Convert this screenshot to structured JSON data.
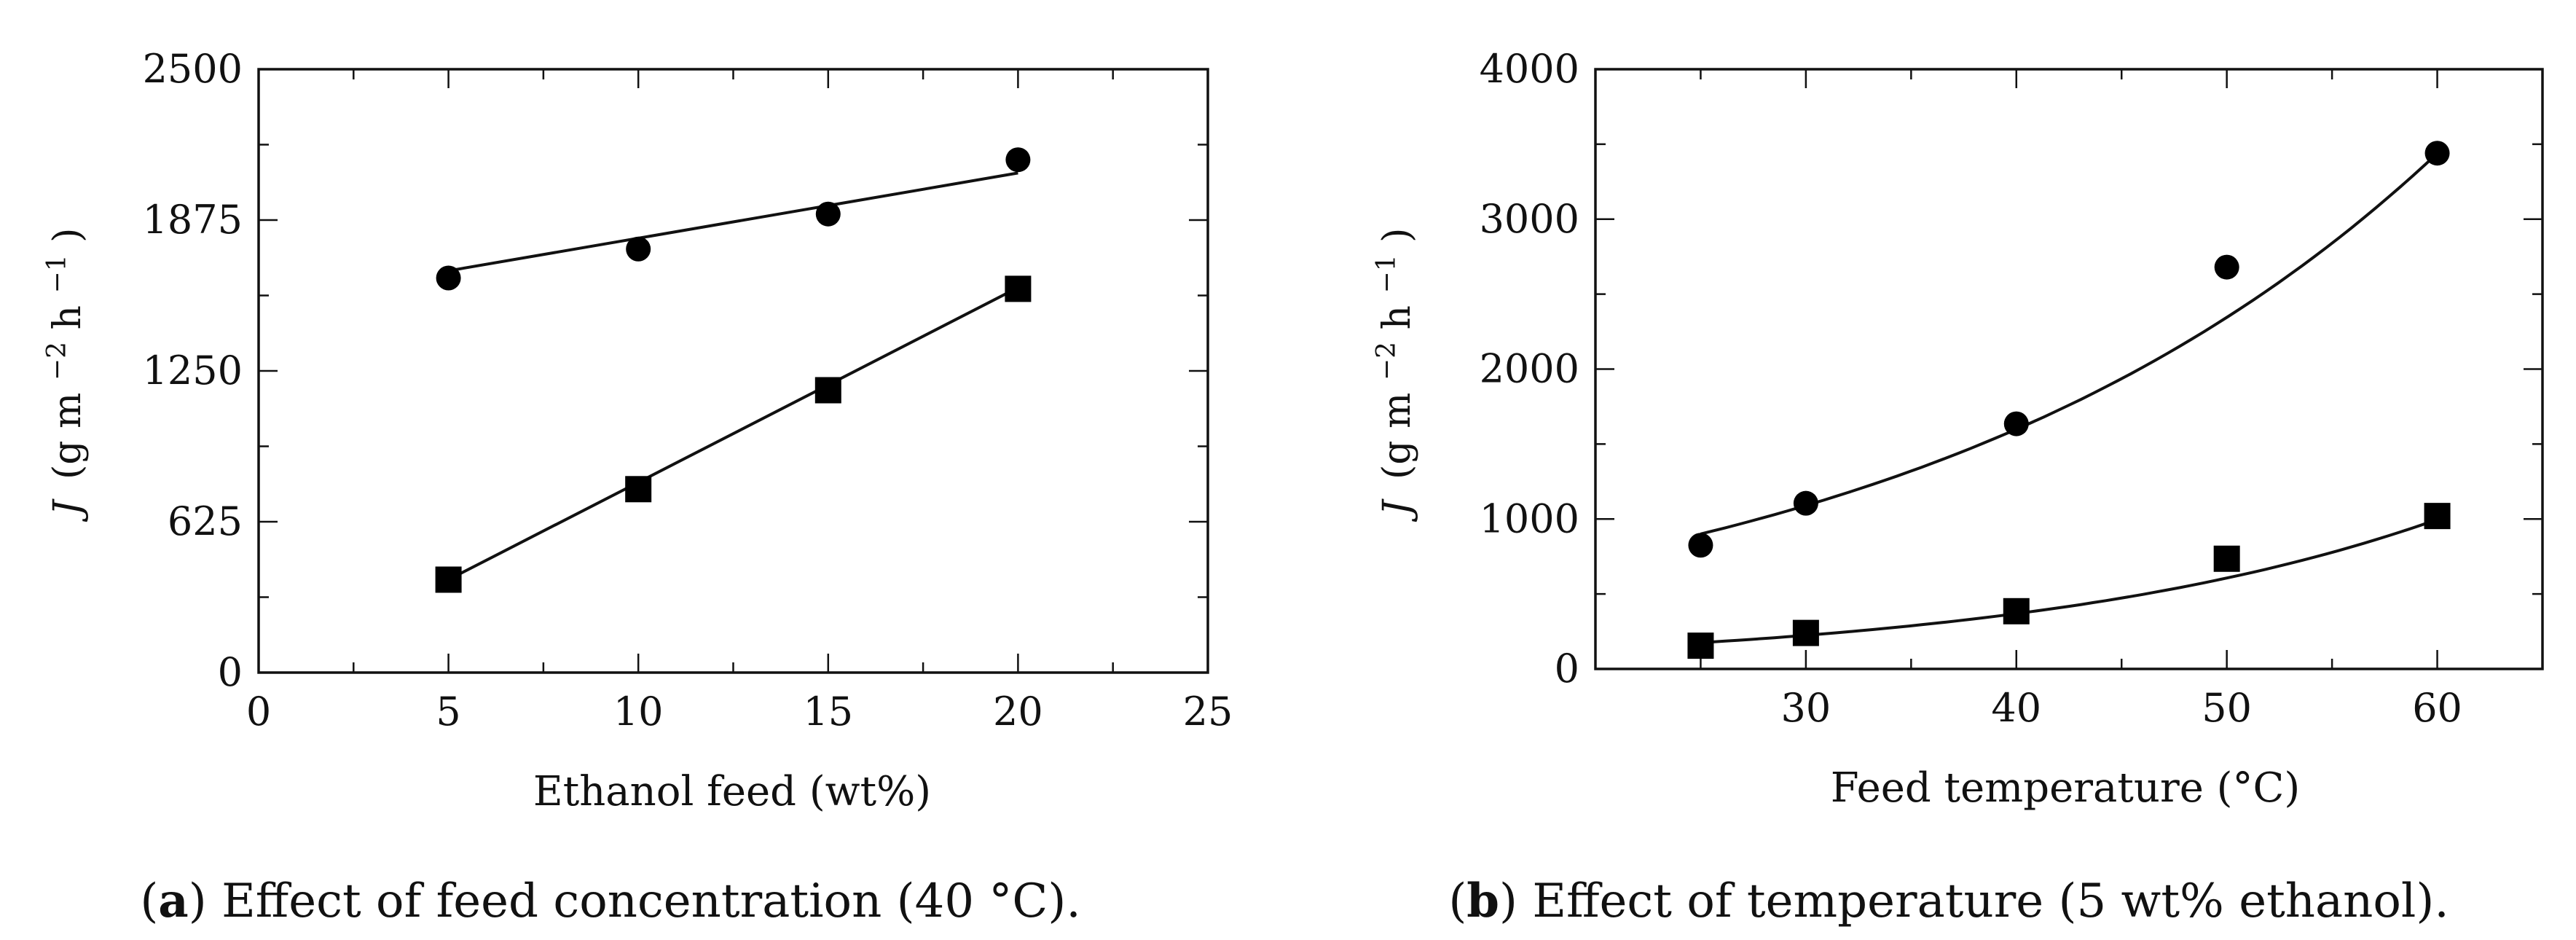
{
  "chart_data": [
    {
      "type": "scatter",
      "title": "",
      "caption_label": "a",
      "caption_text": " Effect of feed concentration (40 °C).",
      "xlabel": "Ethanol feed (wt%)",
      "ylabel": "J (g m−2 h−1)",
      "ylabel_symbol": "J",
      "ylabel_unit": "(g m",
      "ylabel_exp1": "−2",
      "ylabel_unit2": " h",
      "ylabel_exp2": "−1",
      "ylabel_close": ")",
      "xlim": [
        0,
        25
      ],
      "ylim": [
        0,
        2500
      ],
      "xticks": [
        0,
        5,
        10,
        15,
        20,
        25
      ],
      "yticks": [
        0,
        625,
        1250,
        1875,
        2500
      ],
      "xtick_labels": [
        "0",
        "5",
        "10",
        "15",
        "20",
        "25"
      ],
      "ytick_labels": [
        "0",
        "625",
        "1250",
        "1875",
        "2500"
      ],
      "series": [
        {
          "name": "circles",
          "marker": "circle",
          "x": [
            5,
            10,
            15,
            20
          ],
          "values": [
            1635,
            1755,
            1900,
            2125
          ],
          "fit_type": "linear",
          "fit_x": [
            5,
            20
          ],
          "fit_y": [
            1665,
            2070
          ]
        },
        {
          "name": "squares",
          "marker": "square",
          "x": [
            5,
            10,
            15,
            20
          ],
          "values": [
            385,
            760,
            1170,
            1590
          ],
          "fit_type": "linear",
          "fit_x": [
            5,
            20
          ],
          "fit_y": [
            385,
            1595
          ]
        }
      ]
    },
    {
      "type": "scatter",
      "title": "",
      "caption_label": "b",
      "caption_text": " Effect of temperature (5 wt% ethanol).",
      "xlabel": "Feed temperature (°C)",
      "ylabel": "J (g m−2 h−1)",
      "ylabel_symbol": "J",
      "ylabel_unit": "(g m",
      "ylabel_exp1": "−2",
      "ylabel_unit2": " h",
      "ylabel_exp2": "−1",
      "ylabel_close": ")",
      "xlim": [
        20,
        65
      ],
      "ylim": [
        0,
        4000
      ],
      "xticks": [
        30,
        40,
        50,
        60
      ],
      "yticks": [
        0,
        1000,
        2000,
        3000,
        4000
      ],
      "xtick_labels": [
        "30",
        "40",
        "50",
        "60"
      ],
      "ytick_labels": [
        "0",
        "1000",
        "2000",
        "3000",
        "4000"
      ],
      "series": [
        {
          "name": "circles",
          "marker": "circle",
          "x": [
            25,
            30,
            40,
            50,
            60
          ],
          "values": [
            825,
            1105,
            1635,
            2680,
            3440
          ],
          "fit_type": "exponential",
          "fit_a": 900,
          "fit_b": 0.0383,
          "fit_x0": 25,
          "fit_range": [
            25,
            60
          ]
        },
        {
          "name": "squares",
          "marker": "square",
          "x": [
            25,
            30,
            40,
            50,
            60
          ],
          "values": [
            155,
            240,
            385,
            735,
            1020
          ],
          "fit_type": "exponential",
          "fit_a": 175,
          "fit_b": 0.0497,
          "fit_x0": 25,
          "fit_range": [
            25,
            60
          ]
        }
      ]
    }
  ]
}
